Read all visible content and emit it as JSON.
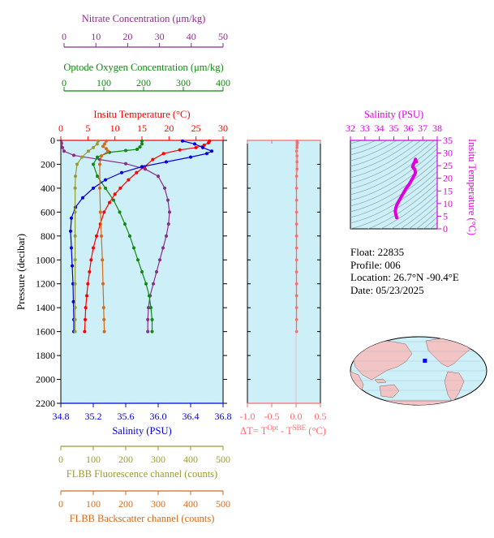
{
  "colors": {
    "nitrate": "#8b2d8b",
    "oxygen": "#118811",
    "temperature": "#ff0000",
    "salinity": "#0000dd",
    "fluorescence": "#9a9a33",
    "backscatter": "#d66a1a",
    "delta": "#ff6a6a",
    "ts_axis": "#dd00dd",
    "panel_fill": "#cdeff7"
  },
  "info": {
    "float": "Float:  22835",
    "profile": "Profile:  006",
    "location": "Location:  26.7°N  -90.4°E",
    "date": "Date:  05/23/2025"
  },
  "map": {
    "marker_lat": 26.7,
    "marker_lon": -90.4
  },
  "chart_data": [
    {
      "type": "line",
      "ylabel": "Pressure (decibar)",
      "ylim": [
        2200,
        0
      ],
      "yticks": [
        "0",
        "200",
        "400",
        "600",
        "800",
        "1000",
        "1200",
        "1400",
        "1600",
        "1800",
        "2000",
        "2200"
      ],
      "grid": false,
      "axes": {
        "nitrate": {
          "label": "Nitrate Concentration (μm/kg)",
          "ticks": [
            "0",
            "10",
            "20",
            "30",
            "40",
            "50"
          ],
          "lim": [
            0,
            50
          ]
        },
        "oxygen": {
          "label": "Optode Oxygen Concentration (μm/kg)",
          "ticks": [
            "0",
            "100",
            "200",
            "300",
            "400"
          ],
          "lim": [
            0,
            400
          ]
        },
        "temperature": {
          "label": "Insitu Temperature (°C)",
          "ticks": [
            "0",
            "5",
            "10",
            "15",
            "20",
            "25",
            "30"
          ],
          "lim": [
            0,
            30
          ]
        },
        "salinity": {
          "label": "Salinity (PSU)",
          "ticks": [
            "34.8",
            "35.2",
            "35.6",
            "36.0",
            "36.4",
            "36.8"
          ],
          "lim": [
            34.8,
            36.8
          ]
        },
        "fluorescence": {
          "label": "FLBB Fluorescence channel (counts)",
          "ticks": [
            "0",
            "100",
            "200",
            "300",
            "400",
            "500"
          ],
          "lim": [
            0,
            500
          ]
        },
        "backscatter": {
          "label": "FLBB Backscatter channel (counts)",
          "ticks": [
            "0",
            "100",
            "200",
            "300",
            "400",
            "500"
          ],
          "lim": [
            0,
            500
          ]
        }
      },
      "series": [
        {
          "key": "nitrate",
          "axis": "nitrate",
          "points": [
            [
              0,
              5
            ],
            [
              0.2,
              25
            ],
            [
              0.5,
              60
            ],
            [
              1,
              90
            ],
            [
              4,
              125
            ],
            [
              12,
              160
            ],
            [
              20,
              195
            ],
            [
              26,
              240
            ],
            [
              30,
              300
            ],
            [
              32,
              400
            ],
            [
              33,
              500
            ],
            [
              33.5,
              600
            ],
            [
              33.2,
              700
            ],
            [
              32.5,
              800
            ],
            [
              31.5,
              900
            ],
            [
              30.5,
              1000
            ],
            [
              29.5,
              1100
            ],
            [
              28.5,
              1200
            ],
            [
              27.5,
              1300
            ],
            [
              27,
              1400
            ],
            [
              26.8,
              1500
            ],
            [
              26.8,
              1600
            ]
          ]
        },
        {
          "key": "oxygen",
          "axis": "oxygen",
          "points": [
            [
              200,
              5
            ],
            [
              200,
              30
            ],
            [
              195,
              55
            ],
            [
              188,
              75
            ],
            [
              160,
              85
            ],
            [
              120,
              100
            ],
            [
              90,
              140
            ],
            [
              80,
              200
            ],
            [
              90,
              300
            ],
            [
              110,
              400
            ],
            [
              130,
              500
            ],
            [
              145,
              600
            ],
            [
              158,
              700
            ],
            [
              170,
              800
            ],
            [
              180,
              900
            ],
            [
              190,
              1000
            ],
            [
              200,
              1100
            ],
            [
              210,
              1200
            ],
            [
              218,
              1300
            ],
            [
              222,
              1400
            ],
            [
              225,
              1500
            ],
            [
              225,
              1600
            ]
          ]
        },
        {
          "key": "temperature",
          "axis": "temperature",
          "points": [
            [
              27.5,
              5
            ],
            [
              27.3,
              20
            ],
            [
              26.5,
              40
            ],
            [
              25,
              60
            ],
            [
              22,
              80
            ],
            [
              19,
              110
            ],
            [
              17,
              160
            ],
            [
              15.5,
              220
            ],
            [
              14,
              270
            ],
            [
              12.5,
              330
            ],
            [
              11,
              400
            ],
            [
              10,
              450
            ],
            [
              9,
              520
            ],
            [
              8,
              600
            ],
            [
              7.3,
              700
            ],
            [
              6.6,
              800
            ],
            [
              6,
              900
            ],
            [
              5.6,
              1000
            ],
            [
              5.3,
              1100
            ],
            [
              5,
              1200
            ],
            [
              4.8,
              1300
            ],
            [
              4.6,
              1400
            ],
            [
              4.5,
              1500
            ],
            [
              4.4,
              1600
            ]
          ]
        },
        {
          "key": "salinity",
          "axis": "salinity",
          "points": [
            [
              36.3,
              5
            ],
            [
              36.45,
              30
            ],
            [
              36.55,
              60
            ],
            [
              36.66,
              90
            ],
            [
              36.6,
              110
            ],
            [
              36.4,
              140
            ],
            [
              36.1,
              180
            ],
            [
              35.8,
              220
            ],
            [
              35.55,
              270
            ],
            [
              35.35,
              330
            ],
            [
              35.2,
              400
            ],
            [
              35.07,
              480
            ],
            [
              34.98,
              560
            ],
            [
              34.93,
              650
            ],
            [
              34.92,
              760
            ],
            [
              34.93,
              900
            ],
            [
              34.94,
              1050
            ],
            [
              34.95,
              1200
            ],
            [
              34.955,
              1350
            ],
            [
              34.96,
              1500
            ],
            [
              34.96,
              1600
            ]
          ]
        },
        {
          "key": "fluorescence",
          "axis": "fluorescence",
          "points": [
            [
              115,
              5
            ],
            [
              112,
              30
            ],
            [
              100,
              60
            ],
            [
              85,
              90
            ],
            [
              65,
              140
            ],
            [
              50,
              200
            ],
            [
              45,
              300
            ],
            [
              44,
              400
            ],
            [
              44,
              600
            ],
            [
              44,
              800
            ],
            [
              44,
              1000
            ],
            [
              44,
              1200
            ],
            [
              44,
              1400
            ],
            [
              44,
              1500
            ],
            [
              44,
              1600
            ]
          ]
        },
        {
          "key": "backscatter",
          "axis": "backscatter",
          "points": [
            [
              140,
              5
            ],
            [
              135,
              30
            ],
            [
              130,
              50
            ],
            [
              140,
              70
            ],
            [
              145,
              90
            ],
            [
              125,
              130
            ],
            [
              120,
              200
            ],
            [
              120,
              400
            ],
            [
              122,
              600
            ],
            [
              125,
              800
            ],
            [
              128,
              1000
            ],
            [
              130,
              1200
            ],
            [
              132,
              1400
            ],
            [
              133,
              1500
            ],
            [
              134,
              1600
            ]
          ]
        }
      ]
    },
    {
      "type": "line",
      "xlabel_main": "ΔT= T",
      "xlabel_sup1": "Opt",
      "xlabel_mid": " - T",
      "xlabel_sup2": "SBE",
      "xlabel_tail": " (°C)",
      "xticks": [
        "-1.0",
        "-0.5",
        "0.0",
        "0.5"
      ],
      "xlim": [
        -1.0,
        0.5
      ],
      "ylim": [
        2200,
        0
      ],
      "series": [
        {
          "name": "",
          "points": [
            [
              0.02,
              5
            ],
            [
              0.03,
              20
            ],
            [
              0.02,
              40
            ],
            [
              0.02,
              60
            ],
            [
              0.01,
              90
            ],
            [
              0.02,
              130
            ],
            [
              0.02,
              180
            ],
            [
              0.02,
              240
            ],
            [
              0.01,
              300
            ],
            [
              0.01,
              400
            ],
            [
              0.01,
              500
            ],
            [
              0.01,
              600
            ],
            [
              0.01,
              700
            ],
            [
              0.01,
              800
            ],
            [
              0.01,
              900
            ],
            [
              0.01,
              1000
            ],
            [
              0.01,
              1100
            ],
            [
              0.01,
              1200
            ],
            [
              0.01,
              1300
            ],
            [
              0.01,
              1400
            ],
            [
              0.01,
              1500
            ],
            [
              0.01,
              1600
            ]
          ]
        }
      ]
    },
    {
      "type": "scatter",
      "xlabel": "Salinity (PSU)",
      "xticks": [
        "32",
        "33",
        "34",
        "35",
        "36",
        "37",
        "38"
      ],
      "xlim": [
        32,
        38
      ],
      "ylabel": "Insitu Temperature (°C)",
      "yticks": [
        "0",
        "5",
        "10",
        "15",
        "20",
        "25",
        "30",
        "35"
      ],
      "ylim": [
        0,
        35
      ],
      "points": [
        [
          35.2,
          4.4
        ],
        [
          35.15,
          5.5
        ],
        [
          35.1,
          7
        ],
        [
          35.15,
          8.5
        ],
        [
          35.25,
          10
        ],
        [
          35.4,
          11.5
        ],
        [
          35.55,
          13
        ],
        [
          35.7,
          14.5
        ],
        [
          35.85,
          16
        ],
        [
          36.05,
          17.5
        ],
        [
          36.2,
          19
        ],
        [
          36.35,
          20.5
        ],
        [
          36.45,
          21.5
        ],
        [
          36.5,
          22.5
        ],
        [
          36.45,
          23.5
        ],
        [
          36.3,
          24.5
        ],
        [
          36.35,
          25.5
        ],
        [
          36.45,
          26.5
        ],
        [
          36.5,
          27.5
        ],
        [
          36.55,
          26.5
        ]
      ]
    }
  ]
}
